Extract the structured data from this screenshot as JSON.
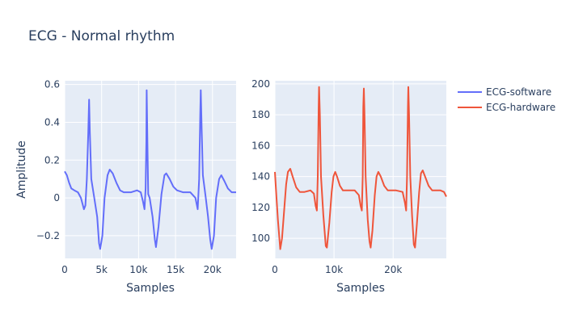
{
  "chart_data": {
    "type": "line",
    "title": "ECG - Normal rhythm",
    "legend_position": "top-right",
    "grid": true,
    "subplots": [
      {
        "xlabel": "Samples",
        "ylabel": "Amplitude",
        "xlim": [
          0,
          23200
        ],
        "ylim": [
          -0.32,
          0.62
        ],
        "xticks": [
          0,
          5000,
          10000,
          15000,
          20000
        ],
        "xtick_labels": [
          "0",
          "5k",
          "10k",
          "15k",
          "20k"
        ],
        "yticks": [
          -0.2,
          0,
          0.2,
          0.4,
          0.6
        ],
        "ytick_labels": [
          "−0.2",
          "0",
          "0.2",
          "0.4",
          "0.6"
        ],
        "series": [
          {
            "name": "ECG-software",
            "color": "#636efa",
            "points": [
              [
                0,
                0.14
              ],
              [
                300,
                0.12
              ],
              [
                600,
                0.08
              ],
              [
                900,
                0.05
              ],
              [
                1300,
                0.04
              ],
              [
                1800,
                0.03
              ],
              [
                2200,
                0.0
              ],
              [
                2600,
                -0.06
              ],
              [
                2800,
                -0.04
              ],
              [
                3000,
                0.1
              ],
              [
                3200,
                0.35
              ],
              [
                3300,
                0.52
              ],
              [
                3400,
                0.35
              ],
              [
                3600,
                0.1
              ],
              [
                4000,
                0.0
              ],
              [
                4400,
                -0.1
              ],
              [
                4650,
                -0.24
              ],
              [
                4800,
                -0.27
              ],
              [
                5100,
                -0.2
              ],
              [
                5400,
                0.0
              ],
              [
                5800,
                0.12
              ],
              [
                6100,
                0.15
              ],
              [
                6500,
                0.13
              ],
              [
                7000,
                0.08
              ],
              [
                7500,
                0.04
              ],
              [
                8000,
                0.03
              ],
              [
                9000,
                0.03
              ],
              [
                9800,
                0.04
              ],
              [
                10300,
                0.03
              ],
              [
                10600,
                -0.02
              ],
              [
                10800,
                -0.06
              ],
              [
                10950,
                0.05
              ],
              [
                11050,
                0.3
              ],
              [
                11100,
                0.57
              ],
              [
                11200,
                0.3
              ],
              [
                11300,
                0.02
              ],
              [
                11500,
                0.0
              ],
              [
                11900,
                -0.1
              ],
              [
                12200,
                -0.22
              ],
              [
                12350,
                -0.26
              ],
              [
                12700,
                -0.15
              ],
              [
                13100,
                0.02
              ],
              [
                13500,
                0.12
              ],
              [
                13750,
                0.13
              ],
              [
                14200,
                0.1
              ],
              [
                14700,
                0.06
              ],
              [
                15200,
                0.04
              ],
              [
                16000,
                0.03
              ],
              [
                17000,
                0.03
              ],
              [
                17700,
                0.0
              ],
              [
                18000,
                -0.06
              ],
              [
                18200,
                0.1
              ],
              [
                18350,
                0.45
              ],
              [
                18420,
                0.57
              ],
              [
                18550,
                0.35
              ],
              [
                18700,
                0.12
              ],
              [
                19100,
                0.0
              ],
              [
                19400,
                -0.1
              ],
              [
                19700,
                -0.22
              ],
              [
                19900,
                -0.27
              ],
              [
                20200,
                -0.2
              ],
              [
                20500,
                0.0
              ],
              [
                20900,
                0.1
              ],
              [
                21200,
                0.12
              ],
              [
                21600,
                0.09
              ],
              [
                22100,
                0.05
              ],
              [
                22600,
                0.03
              ],
              [
                23200,
                0.03
              ]
            ]
          }
        ]
      },
      {
        "xlabel": "Samples",
        "ylabel": "",
        "xlim": [
          0,
          29000
        ],
        "ylim": [
          87,
          202
        ],
        "xticks": [
          0,
          10000,
          20000
        ],
        "xtick_labels": [
          "0",
          "10k",
          "20k"
        ],
        "yticks": [
          100,
          120,
          140,
          160,
          180,
          200
        ],
        "ytick_labels": [
          "100",
          "120",
          "140",
          "160",
          "180",
          "200"
        ],
        "series": [
          {
            "name": "ECG-hardware",
            "color": "#ef553b",
            "points": [
              [
                0,
                143
              ],
              [
                200,
                130
              ],
              [
                500,
                112
              ],
              [
                900,
                93
              ],
              [
                1200,
                100
              ],
              [
                1600,
                120
              ],
              [
                1900,
                135
              ],
              [
                2200,
                143
              ],
              [
                2600,
                145
              ],
              [
                3000,
                140
              ],
              [
                3600,
                133
              ],
              [
                4200,
                130
              ],
              [
                5000,
                130
              ],
              [
                6000,
                131
              ],
              [
                6600,
                129
              ],
              [
                6900,
                121
              ],
              [
                7100,
                118
              ],
              [
                7250,
                140
              ],
              [
                7400,
                185
              ],
              [
                7470,
                198
              ],
              [
                7600,
                180
              ],
              [
                7800,
                140
              ],
              [
                8200,
                115
              ],
              [
                8600,
                95
              ],
              [
                8800,
                94
              ],
              [
                9200,
                110
              ],
              [
                9600,
                130
              ],
              [
                9900,
                140
              ],
              [
                10200,
                143
              ],
              [
                10500,
                140
              ],
              [
                11000,
                134
              ],
              [
                11500,
                131
              ],
              [
                12500,
                131
              ],
              [
                13500,
                131
              ],
              [
                14200,
                128
              ],
              [
                14500,
                121
              ],
              [
                14700,
                118
              ],
              [
                14850,
                140
              ],
              [
                14950,
                185
              ],
              [
                15050,
                197
              ],
              [
                15150,
                180
              ],
              [
                15350,
                140
              ],
              [
                15700,
                112
              ],
              [
                16000,
                98
              ],
              [
                16200,
                94
              ],
              [
                16500,
                105
              ],
              [
                16900,
                128
              ],
              [
                17200,
                140
              ],
              [
                17500,
                143
              ],
              [
                17900,
                140
              ],
              [
                18500,
                134
              ],
              [
                19100,
                131
              ],
              [
                20500,
                131
              ],
              [
                21600,
                130
              ],
              [
                22000,
                123
              ],
              [
                22200,
                118
              ],
              [
                22350,
                140
              ],
              [
                22500,
                185
              ],
              [
                22570,
                198
              ],
              [
                22700,
                180
              ],
              [
                22900,
                140
              ],
              [
                23200,
                115
              ],
              [
                23500,
                96
              ],
              [
                23700,
                94
              ],
              [
                24000,
                108
              ],
              [
                24400,
                130
              ],
              [
                24700,
                142
              ],
              [
                25000,
                144
              ],
              [
                25400,
                140
              ],
              [
                26000,
                134
              ],
              [
                26600,
                131
              ],
              [
                28000,
                131
              ],
              [
                28600,
                130
              ],
              [
                29000,
                127
              ]
            ]
          }
        ]
      }
    ]
  }
}
